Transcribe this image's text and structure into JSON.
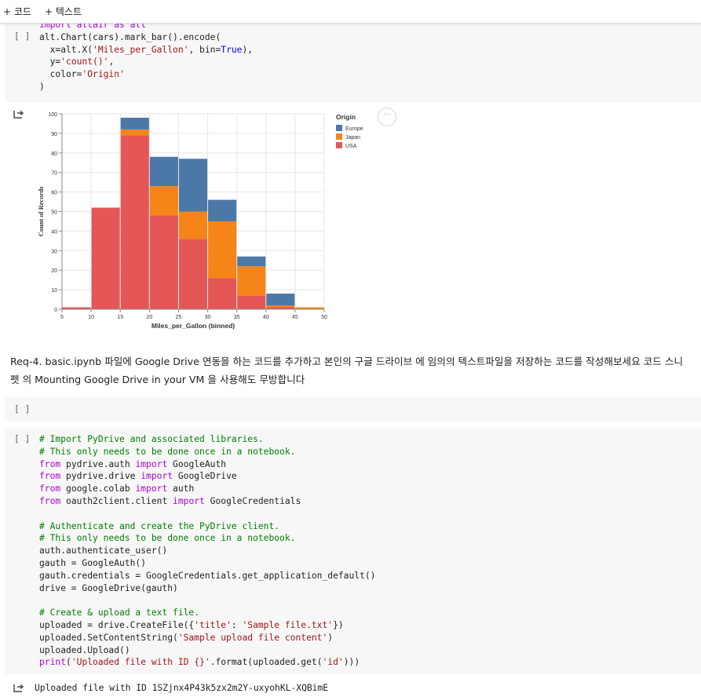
{
  "toolbar": {
    "add_code": "+ 코드",
    "add_text": "+ 텍스트"
  },
  "cell1": {
    "run": "[ ]",
    "lines": [
      [
        [
          "import altair as alt",
          "kw"
        ]
      ],
      [
        [
          "alt.Chart(cars).mark_bar().encode(",
          "fn"
        ]
      ],
      [
        [
          "  x=alt.X(",
          "fn"
        ],
        [
          "'Miles_per_Gallon'",
          "str"
        ],
        [
          ", bin=",
          "fn"
        ],
        [
          "True",
          "kwb"
        ],
        [
          "),",
          "fn"
        ]
      ],
      [
        [
          "  y=",
          "fn"
        ],
        [
          "'count()'",
          "str"
        ],
        [
          ",",
          "fn"
        ]
      ],
      [
        [
          "  color=",
          "fn"
        ],
        [
          "'Origin'",
          "str"
        ]
      ],
      [
        [
          ")",
          "fn"
        ]
      ]
    ]
  },
  "chart_data": {
    "type": "bar",
    "stacked": true,
    "xlabel": "Miles_per_Gallon (binned)",
    "ylabel": "Count of Records",
    "xlim": [
      5,
      50
    ],
    "ylim": [
      0,
      100
    ],
    "xticks": [
      5,
      10,
      15,
      20,
      25,
      30,
      35,
      40,
      45,
      50
    ],
    "yticks": [
      0,
      10,
      20,
      30,
      40,
      50,
      60,
      70,
      80,
      90,
      100
    ],
    "bins": [
      [
        5,
        10
      ],
      [
        10,
        15
      ],
      [
        15,
        20
      ],
      [
        20,
        25
      ],
      [
        25,
        30
      ],
      [
        30,
        35
      ],
      [
        35,
        40
      ],
      [
        40,
        45
      ],
      [
        45,
        50
      ]
    ],
    "legend_title": "Origin",
    "legend_position": "right",
    "series": [
      {
        "name": "USA",
        "color": "#e45756",
        "values": [
          1,
          52,
          89,
          48,
          36,
          16,
          7,
          1,
          0
        ]
      },
      {
        "name": "Japan",
        "color": "#f58518",
        "values": [
          0,
          0,
          3,
          15,
          14,
          29,
          15,
          1,
          1
        ]
      },
      {
        "name": "Europe",
        "color": "#4c78a8",
        "values": [
          0,
          0,
          6,
          15,
          27,
          11,
          5,
          6,
          0
        ]
      }
    ],
    "legend_order": [
      "Europe",
      "Japan",
      "USA"
    ],
    "grid": true
  },
  "chart_menu": "···",
  "markdown": {
    "text": "Req-4. basic.ipynb 파일에 Google Drive 연동을 하는 코드를 추가하고 본인의 구글 드라이브 에 임의의 텍스트파일을 저장하는 코드를 작성해보세요 코드 스니펫 의 Mounting Google Drive in your VM 을 사용해도 무방합니다"
  },
  "cell2": {
    "run": "[ ]"
  },
  "cell3": {
    "run": "[ ]",
    "lines": [
      [
        [
          "# Import PyDrive and associated libraries.",
          "cm"
        ]
      ],
      [
        [
          "# This only needs to be done once in a notebook.",
          "cm"
        ]
      ],
      [
        [
          "from",
          "kw"
        ],
        [
          " pydrive.auth ",
          "fn"
        ],
        [
          "import",
          "kw"
        ],
        [
          " GoogleAuth",
          "fn"
        ]
      ],
      [
        [
          "from",
          "kw"
        ],
        [
          " pydrive.drive ",
          "fn"
        ],
        [
          "import",
          "kw"
        ],
        [
          " GoogleDrive",
          "fn"
        ]
      ],
      [
        [
          "from",
          "kw"
        ],
        [
          " google.colab ",
          "fn"
        ],
        [
          "import",
          "kw"
        ],
        [
          " auth",
          "fn"
        ]
      ],
      [
        [
          "from",
          "kw"
        ],
        [
          " oauth2client.client ",
          "fn"
        ],
        [
          "import",
          "kw"
        ],
        [
          " GoogleCredentials",
          "fn"
        ]
      ],
      [
        [
          "",
          "fn"
        ]
      ],
      [
        [
          "# Authenticate and create the PyDrive client.",
          "cm"
        ]
      ],
      [
        [
          "# This only needs to be done once in a notebook.",
          "cm"
        ]
      ],
      [
        [
          "auth.authenticate_user()",
          "fn"
        ]
      ],
      [
        [
          "gauth = GoogleAuth()",
          "fn"
        ]
      ],
      [
        [
          "gauth.credentials = GoogleCredentials.get_application_default()",
          "fn"
        ]
      ],
      [
        [
          "drive = GoogleDrive(gauth)",
          "fn"
        ]
      ],
      [
        [
          "",
          "fn"
        ]
      ],
      [
        [
          "# Create & upload a text file.",
          "cm"
        ]
      ],
      [
        [
          "uploaded = drive.CreateFile({",
          "fn"
        ],
        [
          "'title'",
          "str"
        ],
        [
          ": ",
          "fn"
        ],
        [
          "'Sample file.txt'",
          "str"
        ],
        [
          "})",
          "fn"
        ]
      ],
      [
        [
          "uploaded.SetContentString(",
          "fn"
        ],
        [
          "'Sample upload file content'",
          "str"
        ],
        [
          ")",
          "fn"
        ]
      ],
      [
        [
          "uploaded.Upload()",
          "fn"
        ]
      ],
      [
        [
          "print",
          "kw"
        ],
        [
          "(",
          "fn"
        ],
        [
          "'Uploaded file with ID {}'",
          "str"
        ],
        [
          ".format(uploaded.get(",
          "fn"
        ],
        [
          "'id'",
          "str"
        ],
        [
          ")))",
          "fn"
        ]
      ]
    ]
  },
  "output3": {
    "text": "Uploaded file with ID 1SZjnx4P43k5zx2m2Y-uxyohKL-XQBimE"
  }
}
